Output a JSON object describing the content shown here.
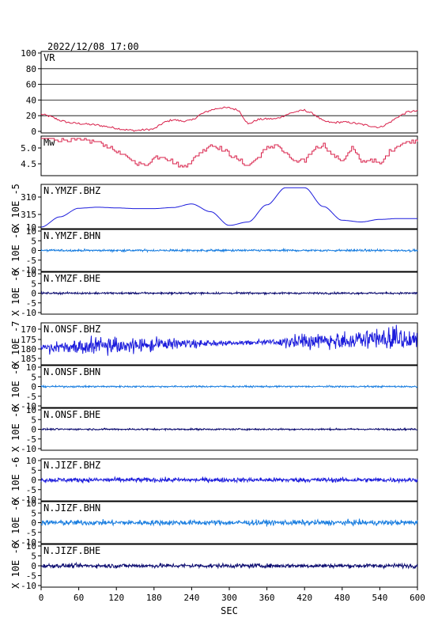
{
  "header": {
    "timestamp": "2022/12/08 17:00"
  },
  "colors": {
    "red": "#d8204a",
    "blue": "#1c1cdc",
    "light_blue": "#1a7ee0",
    "navy": "#0c0c70",
    "grid": "#000000"
  },
  "chart_data": {
    "type": "line",
    "xlabel": "SEC",
    "xlim": [
      0,
      600
    ],
    "xticks": [
      "0",
      "60",
      "120",
      "180",
      "240",
      "300",
      "360",
      "420",
      "480",
      "540",
      "600"
    ],
    "panels": [
      {
        "id": "vr",
        "label": "VR",
        "ylim": [
          0,
          100
        ],
        "yticks": [
          "100",
          "80",
          "60",
          "40",
          "20",
          "0"
        ],
        "color": "#d8204a",
        "kind": "vr",
        "x": [
          0,
          15,
          30,
          45,
          60,
          75,
          90,
          105,
          120,
          135,
          150,
          165,
          180,
          195,
          210,
          225,
          240,
          255,
          270,
          285,
          300,
          315,
          330,
          345,
          360,
          375,
          390,
          405,
          420,
          435,
          450,
          465,
          480,
          495,
          510,
          525,
          540,
          555,
          570,
          585,
          600
        ],
        "values": [
          22,
          19,
          14,
          11,
          10,
          9,
          8,
          6,
          4,
          2,
          1,
          2,
          3,
          11,
          15,
          13,
          14,
          22,
          27,
          30,
          30,
          27,
          9,
          15,
          16,
          16,
          21,
          25,
          27,
          22,
          13,
          11,
          12,
          11,
          9,
          7,
          5,
          11,
          19,
          25,
          26
        ]
      },
      {
        "id": "mw",
        "label": "Mw",
        "yticks": [
          "5.0",
          "4.5"
        ],
        "color": "#d8204a",
        "kind": "mw",
        "x": [
          0,
          15,
          30,
          45,
          60,
          75,
          90,
          105,
          120,
          135,
          150,
          165,
          180,
          195,
          210,
          225,
          240,
          255,
          270,
          285,
          300,
          315,
          330,
          345,
          360,
          375,
          390,
          405,
          420,
          435,
          450,
          465,
          480,
          495,
          510,
          525,
          540,
          555,
          570,
          585,
          600
        ],
        "values": [
          5.28,
          5.28,
          5.26,
          5.24,
          5.24,
          5.22,
          5.2,
          5.05,
          4.9,
          4.7,
          4.55,
          4.45,
          4.7,
          4.75,
          4.55,
          4.4,
          4.6,
          4.9,
          5.1,
          5.0,
          4.8,
          4.6,
          4.45,
          4.7,
          5.0,
          5.1,
          4.8,
          4.55,
          4.6,
          5.0,
          5.1,
          4.75,
          4.6,
          5.0,
          4.55,
          4.65,
          4.45,
          4.9,
          5.1,
          5.2,
          5.25
        ]
      },
      {
        "id": "ymzf_bhz",
        "label": "N.YMZF.BHZ",
        "yaxis": "X 10E -5",
        "yticks": [
          "310",
          "315",
          "10"
        ],
        "color": "#1c1cdc",
        "kind": "smooth",
        "x": [
          0,
          30,
          60,
          90,
          120,
          150,
          180,
          210,
          240,
          270,
          300,
          330,
          360,
          390,
          420,
          450,
          480,
          510,
          540,
          570,
          600
        ],
        "values": [
          10,
          16,
          21,
          21.6,
          21.2,
          20.8,
          20.8,
          21.4,
          23.5,
          19,
          11,
          13,
          23,
          33,
          33,
          22,
          14,
          13,
          14.5,
          15,
          15
        ]
      },
      {
        "id": "ymzf_bhn",
        "label": "N.YMZF.BHN",
        "yaxis": "X 10E -6",
        "yticks": [
          "10",
          "5",
          "0",
          "-5",
          "-10"
        ],
        "color": "#1a7ee0",
        "kind": "noise",
        "amp": 0.5
      },
      {
        "id": "ymzf_bhe",
        "label": "N.YMZF.BHE",
        "yaxis": "X 10E -6",
        "yticks": [
          "10",
          "5",
          "0",
          "-5",
          "-10"
        ],
        "color": "#0c0c70",
        "kind": "noise",
        "amp": 0.45
      },
      {
        "id": "onsf_bhz",
        "label": "N.ONSF.BHZ",
        "yaxis": "X 10E -7",
        "yticks": [
          "170",
          "175",
          "180",
          "185"
        ],
        "color": "#1c1cdc",
        "kind": "heavy"
      },
      {
        "id": "onsf_bhn",
        "label": "N.ONSF.BHN",
        "yaxis": "X 10E -6",
        "yticks": [
          "10",
          "5",
          "0",
          "-5",
          "-10"
        ],
        "color": "#1a7ee0",
        "kind": "noise",
        "amp": 0.4
      },
      {
        "id": "onsf_bhe",
        "label": "N.ONSF.BHE",
        "yaxis": "X 10E -6",
        "yticks": [
          "10",
          "5",
          "0",
          "-5",
          "-10"
        ],
        "color": "#0c0c70",
        "kind": "noise",
        "amp": 0.4
      },
      {
        "id": "jizf_bhz",
        "label": "N.JIZF.BHZ",
        "yaxis": "X 10E -6",
        "yticks": [
          "10",
          "5",
          "0",
          "-5",
          "-10"
        ],
        "color": "#1c1cdc",
        "kind": "noise",
        "amp": 1.1
      },
      {
        "id": "jizf_bhn",
        "label": "N.JIZF.BHN",
        "yaxis": "X 10E -6",
        "yticks": [
          "10",
          "5",
          "0",
          "-5",
          "-10"
        ],
        "color": "#1a7ee0",
        "kind": "noise",
        "amp": 1.3
      },
      {
        "id": "jizf_bhe",
        "label": "N.JIZF.BHE",
        "yaxis": "X 10E -6",
        "yticks": [
          "10",
          "5",
          "0",
          "-5",
          "-10"
        ],
        "color": "#0c0c70",
        "kind": "noise",
        "amp": 1.0
      }
    ]
  }
}
